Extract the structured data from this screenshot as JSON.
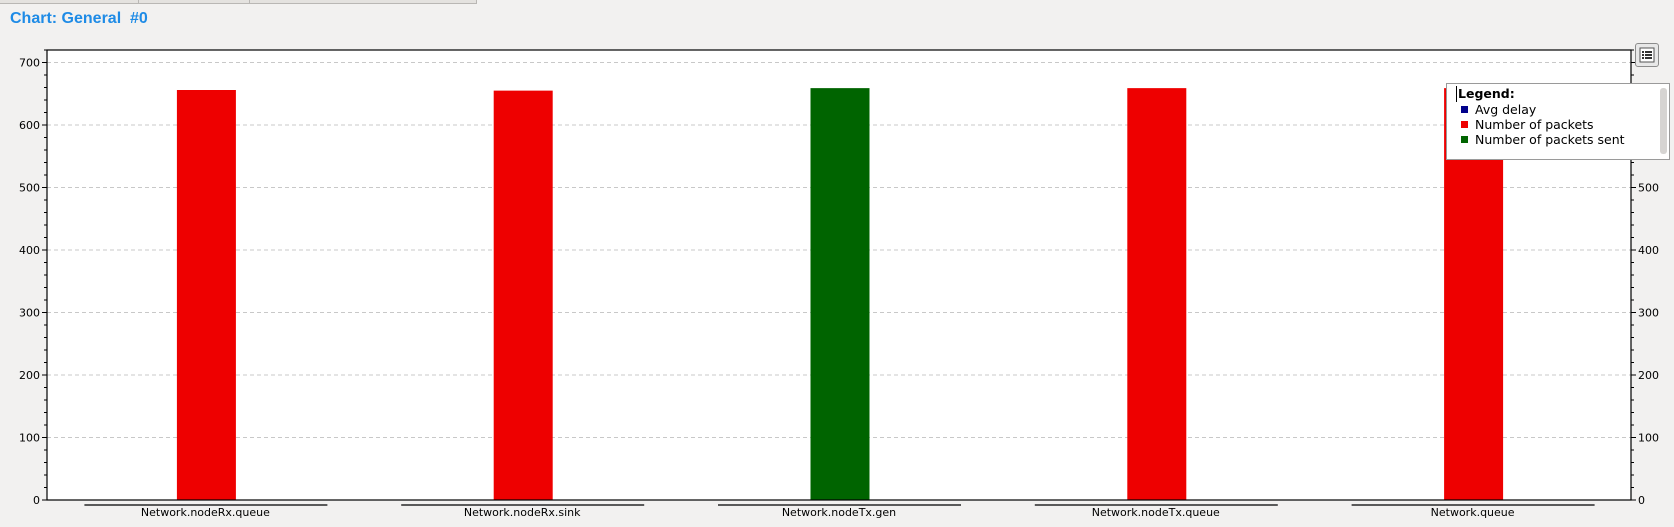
{
  "title": "Chart: General  #0",
  "chart_data": {
    "type": "bar",
    "categories": [
      "Network.nodeRx.queue",
      "Network.nodeRx.sink",
      "Network.nodeTx.gen",
      "Network.nodeTx.queue",
      "Network.queue"
    ],
    "series": [
      {
        "name": "Avg delay",
        "color": "#00008b",
        "values": [
          null,
          null,
          null,
          null,
          null
        ]
      },
      {
        "name": "Number of packets",
        "color": "#ee0000",
        "values": [
          656,
          655,
          null,
          659,
          659
        ]
      },
      {
        "name": "Number of packets sent",
        "color": "#006400",
        "values": [
          null,
          null,
          659,
          null,
          null
        ]
      }
    ],
    "ylim": [
      0,
      720
    ],
    "yticks": [
      0,
      100,
      200,
      300,
      400,
      500,
      600,
      700
    ],
    "grid": true,
    "legend_position": "top-right"
  },
  "legend": {
    "title": "Legend:",
    "items": [
      "Avg delay",
      "Number of packets",
      "Number of packets sent"
    ]
  },
  "legend_toggle_icon": "list-icon"
}
